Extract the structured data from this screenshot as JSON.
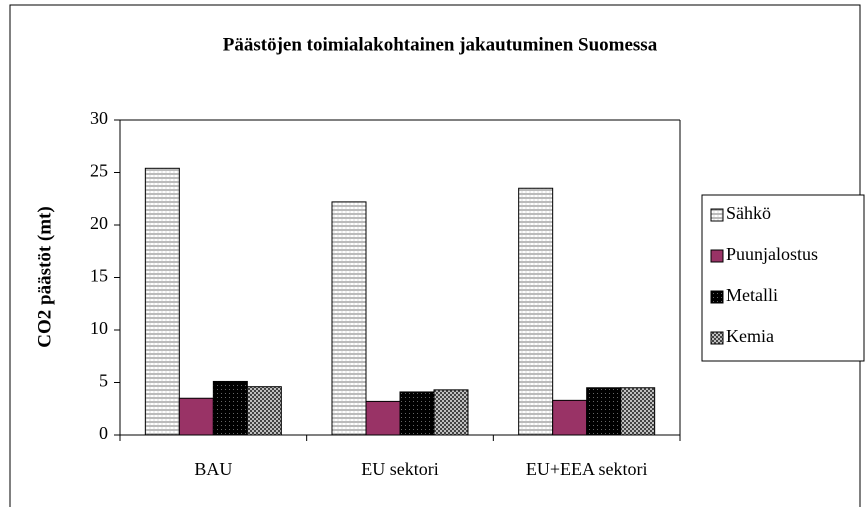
{
  "chart_data": {
    "type": "bar",
    "title": "Päästöjen toimialakohtainen jakautuminen Suomessa",
    "y_label": "CO2 päästöt (mt)",
    "categories": [
      "BAU",
      "EU sektori",
      "EU+EEA sektori"
    ],
    "series": [
      {
        "name": "Sähkö",
        "color": "#ffffff",
        "values": [
          25.4,
          22.2,
          23.5
        ]
      },
      {
        "name": "Puunjalostus",
        "color": "#993366",
        "values": [
          3.5,
          3.2,
          3.3
        ]
      },
      {
        "name": "Metalli",
        "color": "#000000",
        "values": [
          5.1,
          4.1,
          4.5
        ]
      },
      {
        "name": "Kemia",
        "color": "#c0c0c0",
        "values": [
          4.6,
          4.3,
          4.5
        ]
      }
    ],
    "ylim": [
      0,
      30
    ],
    "yticks": [
      0,
      5,
      10,
      15,
      20,
      25,
      30
    ],
    "grid": false,
    "legend": "right"
  }
}
